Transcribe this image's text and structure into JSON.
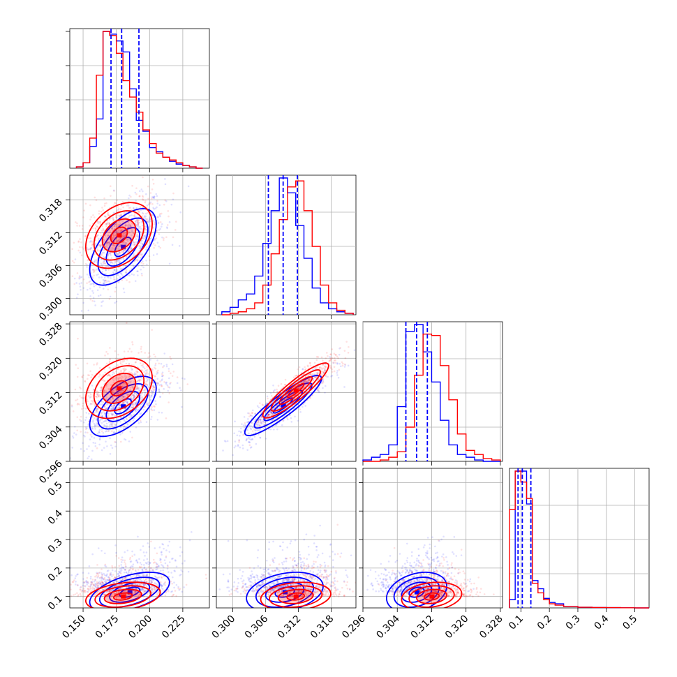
{
  "chart_data": {
    "type": "corner",
    "series": [
      {
        "name": "",
        "color": "#0000ff"
      },
      {
        "name": "",
        "color": "#ff0000"
      }
    ],
    "parameters": [
      {
        "range": [
          0.14,
          0.245
        ],
        "ticks": [
          0.15,
          0.175,
          0.2,
          0.225
        ],
        "tick_labels": [
          "0.150",
          "0.175",
          "0.200",
          "0.225"
        ]
      },
      {
        "range": [
          0.297,
          0.3225
        ],
        "ticks": [
          0.3,
          0.306,
          0.312,
          0.318
        ],
        "tick_labels": [
          "0.300",
          "0.306",
          "0.312",
          "0.318"
        ]
      },
      {
        "range": [
          0.296,
          0.3285
        ],
        "ticks": [
          0.296,
          0.304,
          0.312,
          0.32,
          0.328
        ],
        "tick_labels": [
          "0.296",
          "0.304",
          "0.312",
          "0.320",
          "0.328"
        ]
      },
      {
        "range": [
          0.06,
          0.55
        ],
        "ticks": [
          0.1,
          0.2,
          0.3,
          0.4,
          0.5
        ],
        "tick_labels": [
          "0.1",
          "0.2",
          "0.3",
          "0.4",
          "0.5"
        ]
      }
    ],
    "quantile_lines": [
      [
        0.171,
        0.179,
        0.192
      ],
      [
        0.3065,
        0.3092,
        0.3118
      ],
      [
        0.306,
        0.3085,
        0.311
      ],
      [
        0.09,
        0.105,
        0.135
      ]
    ],
    "histograms": [
      {
        "bins": [
          0.145,
          0.15,
          0.155,
          0.16,
          0.165,
          0.17,
          0.175,
          0.18,
          0.185,
          0.19,
          0.195,
          0.2,
          0.205,
          0.21,
          0.215,
          0.22,
          0.225,
          0.23,
          0.235,
          0.24
        ],
        "blue": [
          1,
          4,
          16,
          36,
          100,
          98,
          93,
          85,
          58,
          35,
          27,
          15,
          12,
          8,
          5,
          3,
          2,
          1,
          0
        ],
        "red": [
          1,
          4,
          22,
          68,
          100,
          97,
          84,
          64,
          52,
          41,
          28,
          18,
          11,
          8,
          6,
          4,
          2,
          1,
          0
        ]
      },
      {
        "bins": [
          0.298,
          0.2995,
          0.301,
          0.3025,
          0.304,
          0.3055,
          0.307,
          0.3085,
          0.31,
          0.3115,
          0.313,
          0.3145,
          0.316,
          0.3175,
          0.319,
          0.3205,
          0.322
        ],
        "blue": [
          2,
          5,
          10,
          14,
          26,
          48,
          70,
          92,
          82,
          60,
          38,
          18,
          8,
          4,
          2,
          1
        ],
        "red": [
          0,
          1,
          2,
          4,
          8,
          20,
          41,
          64,
          86,
          90,
          70,
          46,
          20,
          8,
          3,
          1
        ]
      },
      {
        "bins": [
          0.296,
          0.298,
          0.3,
          0.302,
          0.304,
          0.306,
          0.308,
          0.31,
          0.312,
          0.314,
          0.316,
          0.318,
          0.32,
          0.322,
          0.324,
          0.326,
          0.328
        ],
        "blue": [
          1,
          3,
          5,
          12,
          40,
          95,
          100,
          80,
          58,
          30,
          12,
          5,
          3,
          1,
          0,
          0
        ],
        "red": [
          0,
          0,
          1,
          3,
          7,
          25,
          63,
          93,
          92,
          70,
          45,
          20,
          8,
          5,
          2,
          1
        ]
      },
      {
        "bins": [
          0.06,
          0.08,
          0.1,
          0.12,
          0.14,
          0.16,
          0.18,
          0.2,
          0.22,
          0.25,
          0.3,
          0.35,
          0.4,
          0.45,
          0.5,
          0.55
        ],
        "blue": [
          6,
          100,
          100,
          76,
          20,
          14,
          7,
          4,
          3,
          1,
          0.5,
          0.3,
          0.2,
          0.1,
          0
        ],
        "red": [
          72,
          100,
          92,
          80,
          18,
          11,
          6,
          3,
          2,
          1,
          0.5,
          0.3,
          0.2,
          0.1,
          0
        ]
      }
    ],
    "pairs": [
      {
        "row": 1,
        "col": 0,
        "blue": {
          "mean": [
            0.18,
            0.3094
          ],
          "sd": [
            0.0125,
            0.0035
          ],
          "rho": 0.6
        },
        "red": {
          "mean": [
            0.177,
            0.3115
          ],
          "sd": [
            0.0125,
            0.003
          ],
          "rho": 0.35
        }
      },
      {
        "row": 2,
        "col": 0,
        "blue": {
          "mean": [
            0.18,
            0.3088
          ],
          "sd": [
            0.0125,
            0.0035
          ],
          "rho": 0.6
        },
        "red": {
          "mean": [
            0.177,
            0.313
          ],
          "sd": [
            0.0125,
            0.0035
          ],
          "rho": 0.35
        }
      },
      {
        "row": 2,
        "col": 1,
        "blue": {
          "mean": [
            0.3092,
            0.309
          ],
          "sd": [
            0.0035,
            0.0035
          ],
          "rho": 0.9
        },
        "red": {
          "mean": [
            0.3115,
            0.3125
          ],
          "sd": [
            0.003,
            0.0032
          ],
          "rho": 0.9
        }
      },
      {
        "row": 3,
        "col": 0,
        "blue": {
          "mean": [
            0.185,
            0.115
          ],
          "sd": [
            0.015,
            0.035
          ],
          "rho": 0.5
        },
        "red": {
          "mean": [
            0.18,
            0.1
          ],
          "sd": [
            0.014,
            0.025
          ],
          "rho": 0.3
        }
      },
      {
        "row": 3,
        "col": 1,
        "blue": {
          "mean": [
            0.3095,
            0.115
          ],
          "sd": [
            0.0035,
            0.035
          ],
          "rho": 0.3
        },
        "red": {
          "mean": [
            0.3115,
            0.1
          ],
          "sd": [
            0.0032,
            0.025
          ],
          "rho": 0.2
        }
      },
      {
        "row": 3,
        "col": 2,
        "blue": {
          "mean": [
            0.3085,
            0.115
          ],
          "sd": [
            0.0035,
            0.035
          ],
          "rho": 0.3
        },
        "red": {
          "mean": [
            0.312,
            0.1
          ],
          "sd": [
            0.0035,
            0.025
          ],
          "rho": 0.2
        }
      }
    ],
    "grid": true,
    "legend": "none"
  }
}
